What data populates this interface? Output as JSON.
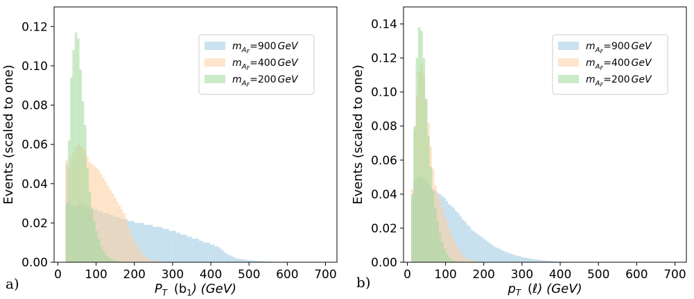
{
  "colors": {
    "blue": "#9ecae1",
    "orange": "#fdd0a2",
    "green": "#a1d99b"
  },
  "chart_data": [
    {
      "type": "bar",
      "panel_label": "a)",
      "xlabel": "P_T (b_1) (GeV)",
      "xlabel_main": "P",
      "xlabel_sub": "T",
      "xlabel_arg": "(b",
      "xlabel_arg_sub": "1",
      "xlabel_tail": ") (GeV)",
      "ylabel": "Events (scaled to one)",
      "xlim": [
        -10,
        730
      ],
      "ylim": [
        0,
        0.13
      ],
      "xticks": [
        0,
        100,
        200,
        300,
        400,
        500,
        600,
        700
      ],
      "yticks": [
        0.0,
        0.02,
        0.04,
        0.06,
        0.08,
        0.1,
        0.12
      ],
      "ytick_labels": [
        "0.00",
        "0.02",
        "0.04",
        "0.06",
        "0.08",
        "0.10",
        "0.12"
      ],
      "bin_start": 20,
      "bin_width": 6,
      "series": [
        {
          "name": "m_{A_F}=900 GeV",
          "color_key": "blue",
          "values": [
            0.05,
            0.031,
            0.029,
            0.028,
            0.029,
            0.029,
            0.03,
            0.029,
            0.029,
            0.028,
            0.028,
            0.028,
            0.027,
            0.027,
            0.026,
            0.026,
            0.025,
            0.025,
            0.025,
            0.024,
            0.024,
            0.023,
            0.023,
            0.023,
            0.022,
            0.022,
            0.022,
            0.021,
            0.021,
            0.021,
            0.02,
            0.02,
            0.02,
            0.02,
            0.019,
            0.019,
            0.019,
            0.019,
            0.018,
            0.018,
            0.018,
            0.018,
            0.017,
            0.017,
            0.017,
            0.016,
            0.016,
            0.016,
            0.015,
            0.015,
            0.014,
            0.014,
            0.014,
            0.013,
            0.013,
            0.012,
            0.012,
            0.012,
            0.011,
            0.011,
            0.01,
            0.01,
            0.01,
            0.009,
            0.009,
            0.008,
            0.008,
            0.007,
            0.006,
            0.005,
            0.004,
            0.0035,
            0.003,
            0.0025,
            0.002,
            0.0018,
            0.0016,
            0.0014,
            0.0012,
            0.0011,
            0.001,
            0.0009,
            0.0008,
            0.0007,
            0.0006,
            0.0005,
            0.0005,
            0.0004,
            0.0004,
            0.0003,
            0.0003,
            0.0002,
            0.0002,
            0.0002,
            0.0001,
            0.0001,
            0.0001,
            0.0001
          ]
        },
        {
          "name": "m_{A_F}=400 GeV",
          "color_key": "orange",
          "values": [
            0.052,
            0.048,
            0.053,
            0.056,
            0.059,
            0.06,
            0.059,
            0.058,
            0.057,
            0.054,
            0.051,
            0.05,
            0.049,
            0.048,
            0.047,
            0.045,
            0.043,
            0.041,
            0.039,
            0.037,
            0.035,
            0.033,
            0.031,
            0.029,
            0.027,
            0.025,
            0.022,
            0.018,
            0.014,
            0.012,
            0.01,
            0.008,
            0.006,
            0.004,
            0.003,
            0.002,
            0.0015,
            0.001,
            0.0008,
            0.0006,
            0.0004,
            0.0003,
            0.0002,
            0.0001
          ]
        },
        {
          "name": "m_{A_F}=200 GeV",
          "color_key": "green",
          "values": [
            0.03,
            0.062,
            0.094,
            0.108,
            0.117,
            0.114,
            0.098,
            0.082,
            0.07,
            0.048,
            0.036,
            0.027,
            0.021,
            0.016,
            0.012,
            0.008,
            0.006,
            0.004,
            0.003,
            0.002,
            0.0015,
            0.001,
            0.0005,
            0.0003
          ]
        }
      ]
    },
    {
      "type": "bar",
      "panel_label": "b)",
      "xlabel": "p_T (ℓ) (GeV)",
      "xlabel_main": "p",
      "xlabel_sub": "T",
      "xlabel_arg": "(ℓ",
      "xlabel_arg_sub": "",
      "xlabel_tail": ") (GeV)",
      "ylabel": "Events (scaled to one)",
      "xlim": [
        -10,
        730
      ],
      "ylim": [
        0,
        0.15
      ],
      "xticks": [
        0,
        100,
        200,
        300,
        400,
        500,
        600,
        700
      ],
      "yticks": [
        0.0,
        0.02,
        0.04,
        0.06,
        0.08,
        0.1,
        0.12,
        0.14
      ],
      "ytick_labels": [
        "0.00",
        "0.02",
        "0.04",
        "0.06",
        "0.08",
        "0.10",
        "0.12",
        "0.14"
      ],
      "bin_start": 10,
      "bin_width": 6,
      "series": [
        {
          "name": "m_{A_F}=900 GeV",
          "color_key": "blue",
          "values": [
            0.037,
            0.048,
            0.05,
            0.051,
            0.05,
            0.049,
            0.048,
            0.046,
            0.044,
            0.043,
            0.042,
            0.041,
            0.04,
            0.039,
            0.038,
            0.036,
            0.034,
            0.033,
            0.032,
            0.03,
            0.029,
            0.027,
            0.025,
            0.024,
            0.022,
            0.021,
            0.019,
            0.018,
            0.017,
            0.016,
            0.015,
            0.014,
            0.013,
            0.012,
            0.011,
            0.01,
            0.009,
            0.0085,
            0.008,
            0.007,
            0.0065,
            0.006,
            0.0055,
            0.005,
            0.0045,
            0.004,
            0.0038,
            0.0035,
            0.003,
            0.0028,
            0.0025,
            0.0023,
            0.002,
            0.0018,
            0.0016,
            0.0014,
            0.0012,
            0.0011,
            0.001,
            0.0009,
            0.0008,
            0.0007,
            0.0006,
            0.0005,
            0.0005,
            0.0004,
            0.0004,
            0.0003,
            0.0003,
            0.0002,
            0.0002,
            0.0002,
            0.0001,
            0.0001,
            0.0001
          ]
        },
        {
          "name": "m_{A_F}=400 GeV",
          "color_key": "orange",
          "values": [
            0.043,
            0.078,
            0.098,
            0.112,
            0.116,
            0.11,
            0.096,
            0.082,
            0.068,
            0.055,
            0.045,
            0.04,
            0.036,
            0.032,
            0.028,
            0.024,
            0.02,
            0.016,
            0.013,
            0.01,
            0.008,
            0.006,
            0.004,
            0.003,
            0.002,
            0.0015,
            0.001,
            0.0007,
            0.0005,
            0.0003,
            0.0002,
            0.0001
          ]
        },
        {
          "name": "m_{A_F}=200 GeV",
          "color_key": "green",
          "values": [
            0.04,
            0.08,
            0.12,
            0.138,
            0.136,
            0.12,
            0.096,
            0.074,
            0.056,
            0.042,
            0.032,
            0.024,
            0.017,
            0.012,
            0.008,
            0.005,
            0.003,
            0.002,
            0.001,
            0.0005,
            0.0002
          ]
        }
      ]
    }
  ],
  "legend": {
    "entries": [
      {
        "prefix": "m",
        "sub": "A",
        "subsub": "F",
        "value": "=900",
        "unit": "GeV",
        "color_key": "blue"
      },
      {
        "prefix": "m",
        "sub": "A",
        "subsub": "F",
        "value": "=400",
        "unit": "GeV",
        "color_key": "orange"
      },
      {
        "prefix": "m",
        "sub": "A",
        "subsub": "F",
        "value": "=200",
        "unit": "GeV",
        "color_key": "green"
      }
    ]
  }
}
